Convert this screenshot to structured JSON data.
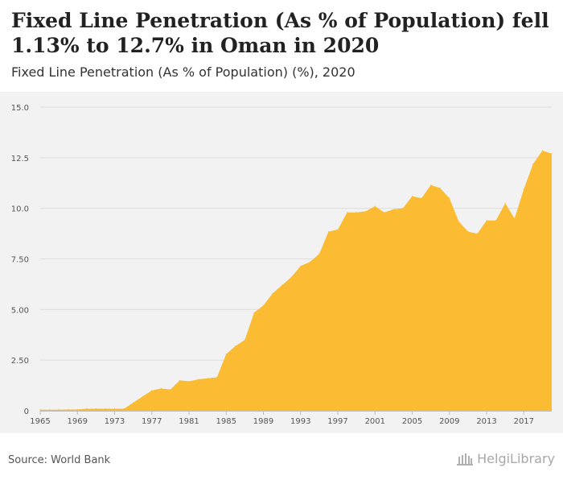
{
  "title": "Fixed Line Penetration (As % of Population) fell 1.13% to 12.7% in Oman in 2020",
  "subtitle": "Fixed Line Penetration (As % of Population) (%), 2020",
  "source": "Source: World Bank",
  "brand": "HelgiLibrary",
  "colors": {
    "area": "#fbbc34",
    "grid": "#dddddd",
    "panel": "#f2f2f2",
    "axis": "#bbbbbb"
  },
  "chart_data": {
    "type": "area",
    "x": [
      1965,
      1966,
      1967,
      1968,
      1969,
      1970,
      1971,
      1972,
      1973,
      1974,
      1975,
      1976,
      1977,
      1978,
      1979,
      1980,
      1981,
      1982,
      1983,
      1984,
      1985,
      1986,
      1987,
      1988,
      1989,
      1990,
      1991,
      1992,
      1993,
      1994,
      1995,
      1996,
      1997,
      1998,
      1999,
      2000,
      2001,
      2002,
      2003,
      2004,
      2005,
      2006,
      2007,
      2008,
      2009,
      2010,
      2011,
      2012,
      2013,
      2014,
      2015,
      2016,
      2017,
      2018,
      2019,
      2020
    ],
    "values": [
      0.05,
      0.05,
      0.05,
      0.06,
      0.06,
      0.1,
      0.1,
      0.1,
      0.1,
      0.1,
      0.4,
      0.7,
      1.0,
      1.1,
      1.05,
      1.5,
      1.45,
      1.55,
      1.6,
      1.65,
      2.8,
      3.2,
      3.5,
      4.85,
      5.2,
      5.8,
      6.2,
      6.6,
      7.15,
      7.35,
      7.75,
      8.85,
      8.95,
      9.8,
      9.8,
      9.85,
      10.1,
      9.8,
      9.95,
      10.0,
      10.6,
      10.5,
      11.15,
      11.0,
      10.5,
      9.35,
      8.85,
      8.75,
      9.4,
      9.4,
      10.25,
      9.5,
      10.95,
      12.2,
      12.85,
      12.7
    ],
    "xticks": [
      "1965",
      "1969",
      "1973",
      "1977",
      "1981",
      "1985",
      "1989",
      "1993",
      "1997",
      "2001",
      "2005",
      "2009",
      "2013",
      "2017"
    ],
    "yticks": [
      "0",
      "2.50",
      "5.00",
      "7.50",
      "10.0",
      "12.5",
      "15.0"
    ],
    "ylim": [
      0,
      15
    ],
    "xlim": [
      1965,
      2020
    ],
    "grid": true,
    "legend": "none"
  }
}
